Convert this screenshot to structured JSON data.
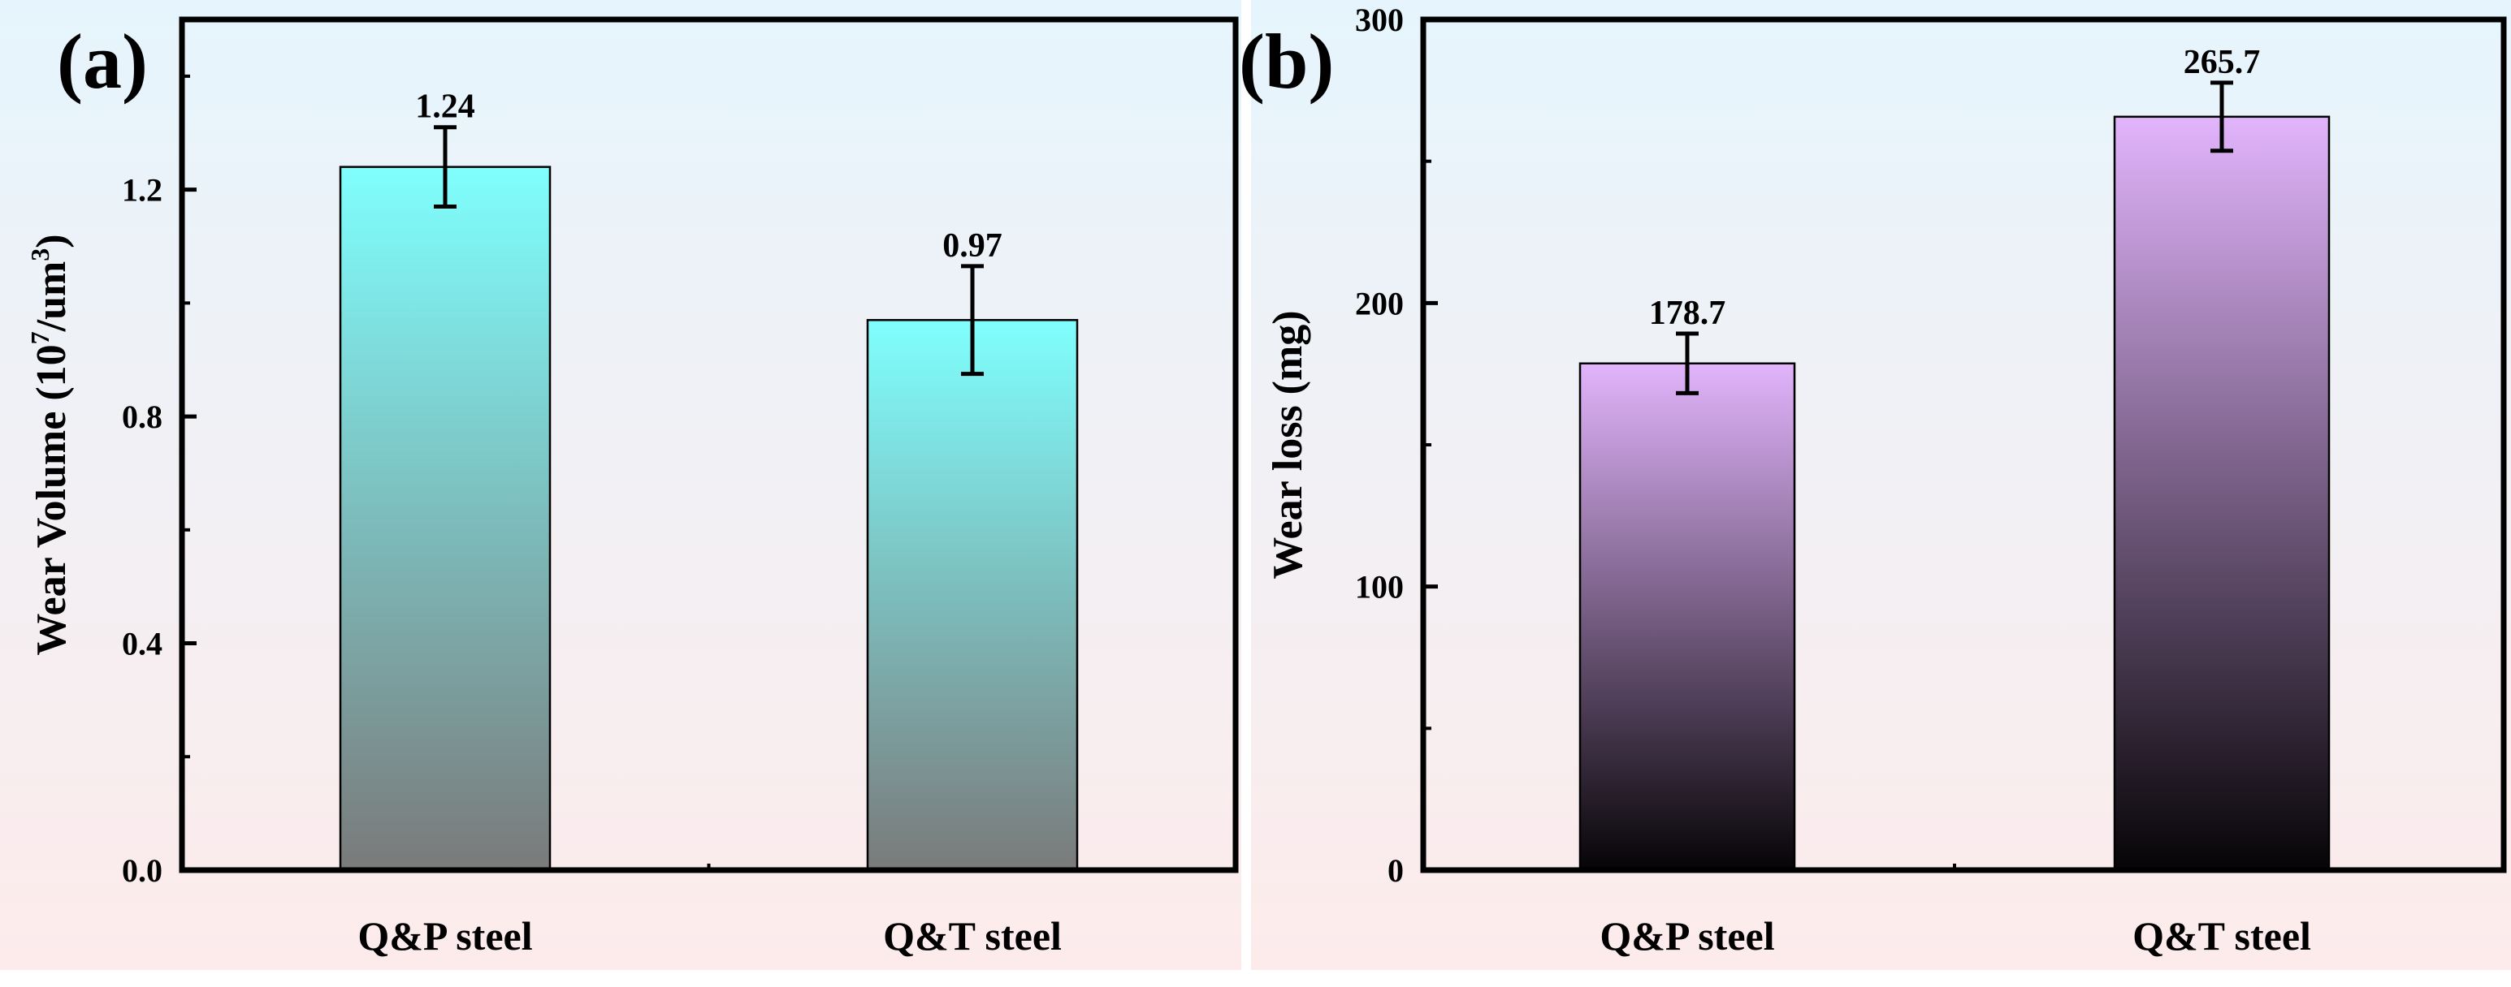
{
  "chart_data": [
    {
      "type": "bar",
      "panel_label": "(a)",
      "title": "",
      "categories": [
        "Q&P steel",
        "Q&T steel"
      ],
      "values": [
        1.24,
        0.97
      ],
      "errors": [
        0.07,
        0.095
      ],
      "value_labels": [
        "1.24",
        "0.97"
      ],
      "xlabel": "",
      "ylabel_main": "Wear Volume (10",
      "ylabel_sup": "7",
      "ylabel_mid": "/um",
      "ylabel_sup2": "3",
      "ylabel_end": ")",
      "ylim": [
        0,
        1.5
      ],
      "yticks": [
        0.0,
        0.4,
        0.8,
        1.2
      ],
      "ytick_labels": [
        "0.0",
        "0.4",
        "0.8",
        "1.2"
      ],
      "minor_ytick_step": 0.2,
      "grid": false,
      "bar_gradient": [
        "#7ffffe",
        "#7a7a7a"
      ],
      "background_gradient": [
        "#e6f5fd",
        "#fdebeb"
      ]
    },
    {
      "type": "bar",
      "panel_label": "(b)",
      "title": "",
      "categories": [
        "Q&P steel",
        "Q&T steel"
      ],
      "values": [
        178.7,
        265.7
      ],
      "errors": [
        10.5,
        12.0
      ],
      "value_labels": [
        "178.7",
        "265.7"
      ],
      "xlabel": "",
      "ylabel": "Wear loss (mg)",
      "ylim": [
        0,
        300
      ],
      "yticks": [
        0,
        100,
        200,
        300
      ],
      "ytick_labels": [
        "0",
        "100",
        "200",
        "300"
      ],
      "minor_ytick_step": 50,
      "grid": false,
      "bar_gradient": [
        "#e2b4fc",
        "#060406"
      ],
      "background_gradient": [
        "#e6f5fd",
        "#fdebeb"
      ]
    }
  ]
}
